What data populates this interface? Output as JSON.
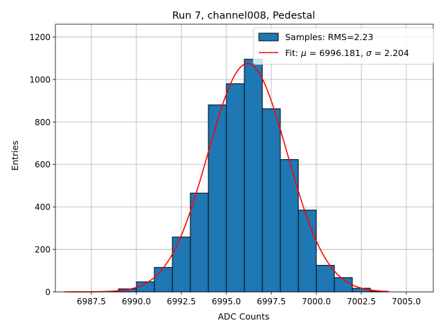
{
  "chart_data": {
    "type": "bar",
    "title": "Run 7, channel008, Pedestal",
    "xlabel": "ADC Counts",
    "ylabel": "Entries",
    "xlim": [
      6985.5,
      7006.5
    ],
    "ylim": [
      0,
      1260
    ],
    "xticks": [
      6987.5,
      6990.0,
      6992.5,
      6995.0,
      6997.5,
      7000.0,
      7002.5,
      7005.0
    ],
    "xtick_labels": [
      "6987.5",
      "6990.0",
      "6992.5",
      "6995.0",
      "6997.5",
      "7000.0",
      "7002.5",
      "7005.0"
    ],
    "yticks": [
      0,
      200,
      400,
      600,
      800,
      1000,
      1200
    ],
    "ytick_labels": [
      "0",
      "200",
      "400",
      "600",
      "800",
      "1000",
      "1200"
    ],
    "grid": true,
    "legend_position": "top-right",
    "histogram": {
      "name": "Samples: RMS=2.23",
      "color": "#1f77b4",
      "edgecolor": "#000000",
      "bin_edges": [
        6986,
        6987,
        6988,
        6989,
        6990,
        6991,
        6992,
        6993,
        6994,
        6995,
        6996,
        6997,
        6998,
        6999,
        7000,
        7001,
        7002,
        7003,
        7004,
        7005,
        7006
      ],
      "counts": [
        0,
        0,
        1,
        14,
        47,
        115,
        258,
        465,
        880,
        980,
        1095,
        862,
        623,
        385,
        125,
        67,
        17,
        3,
        0,
        0
      ]
    },
    "fit": {
      "label_prefix": "Fit: ",
      "mu_symbol": "μ",
      "mu_text": " = 6996.181, ",
      "sigma_symbol": "σ",
      "sigma_text": " = 2.204",
      "mu": 6996.181,
      "sigma": 2.204,
      "amplitude": 1075,
      "x_range": [
        6986,
        7004
      ],
      "color": "#ff0000"
    }
  }
}
